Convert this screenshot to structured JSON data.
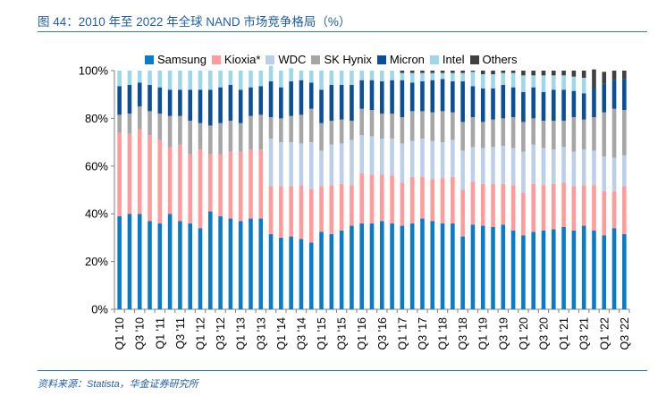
{
  "title": "图 44：2010 年至 2022 年全球 NAND 市场竞争格局（%）",
  "source": "资料来源：Statista，华金证券研究所",
  "chart_data": {
    "type": "bar",
    "stacked": true,
    "title": "图 44：2010 年至 2022 年全球 NAND 市场竞争格局（%）",
    "xlabel": "",
    "ylabel": "",
    "ylim": [
      0,
      100
    ],
    "yticks": [
      "0%",
      "20%",
      "40%",
      "60%",
      "80%",
      "100%"
    ],
    "legend_position": "top",
    "categories": [
      "Q1 '10",
      "Q2 '10",
      "Q3 '10",
      "Q4 '10",
      "Q1 '11",
      "Q2 '11",
      "Q3 '11",
      "Q4 '11",
      "Q1 '12",
      "Q2 '12",
      "Q3 '12",
      "Q4 '12",
      "Q1 '13",
      "Q2 '13",
      "Q3 '13",
      "Q4 '13",
      "Q1 '14",
      "Q2 '14",
      "Q3 '14",
      "Q4 '14",
      "Q1 '15",
      "Q2 '15",
      "Q3 '15",
      "Q4 '15",
      "Q1 '16",
      "Q2 '16",
      "Q3 '16",
      "Q4 '16",
      "Q1 '17",
      "Q2 '17",
      "Q3 '17",
      "Q4 '17",
      "Q1 '18",
      "Q2 '18",
      "Q3 '18",
      "Q4 '18",
      "Q1 '19",
      "Q2 '19",
      "Q3 '19",
      "Q4 '19",
      "Q1 '20",
      "Q2 '20",
      "Q3 '20",
      "Q4 '20",
      "Q1 '21",
      "Q2 '21",
      "Q3 '21",
      "Q4 '21",
      "Q1 '22",
      "Q2 '22",
      "Q3 '22"
    ],
    "tick_labels": [
      "Q1 '10",
      "Q3 '10",
      "Q1 '11",
      "Q3 '11",
      "Q1 '12",
      "Q3 '12",
      "Q1 '13",
      "Q3 '13",
      "Q1 '14",
      "Q3 '14",
      "Q2 '15",
      "Q4 '15",
      "Q2 '16",
      "Q4 '16",
      "Q2 '17",
      "Q4 '17",
      "Q2 '18",
      "Q4 '18",
      "Q2 '19",
      "Q4 '19",
      "Q2 '20",
      "Q4 '20",
      "Q2 '21",
      "Q4 '21",
      "Q2 '22"
    ],
    "series": [
      {
        "name": "Samsung",
        "color": "#0a7bc8",
        "values": [
          39,
          40,
          40,
          37,
          36,
          40,
          37,
          36,
          34,
          41,
          39,
          38,
          37,
          38,
          38,
          31.5,
          30,
          30.5,
          29.5,
          28,
          32.5,
          31.5,
          33,
          35,
          36,
          36,
          37,
          36,
          35,
          36,
          38,
          37,
          36,
          36,
          30.5,
          35.5,
          35,
          34.5,
          35.5,
          33,
          31,
          32.5,
          33,
          33.5,
          34.5,
          33,
          35,
          33,
          31,
          34,
          31.5
        ]
      },
      {
        "name": "Kioxia*",
        "color": "#ff9b9b",
        "values": [
          35,
          33.5,
          35.5,
          36,
          35,
          28,
          32,
          29,
          33,
          24,
          26,
          28,
          29,
          29,
          29,
          20,
          21.5,
          21,
          22.5,
          22.5,
          19,
          20.5,
          19.5,
          17,
          21,
          20.5,
          19.5,
          20,
          18,
          19.5,
          17.5,
          17.5,
          19,
          19.5,
          19.5,
          18,
          17.5,
          18,
          17,
          19,
          18,
          20,
          19,
          19,
          18.5,
          18.5,
          17,
          19,
          18.5,
          15.5,
          20
        ]
      },
      {
        "name": "WDC",
        "color": "#bccfea",
        "values": [
          0,
          0,
          0,
          0,
          0,
          0,
          0,
          0,
          0,
          0,
          0,
          0,
          0,
          0,
          0,
          20,
          18.5,
          18.5,
          17.5,
          19.5,
          15,
          17,
          17,
          19,
          16,
          16,
          15,
          15.5,
          16.5,
          15,
          16,
          16,
          15,
          15.5,
          16.5,
          14.5,
          15,
          15.5,
          16,
          15.5,
          17,
          16.5,
          15.5,
          14.5,
          15,
          14.5,
          15,
          14.5,
          14.5,
          14,
          13
        ]
      },
      {
        "name": "SK Hynix",
        "color": "#a6a6a6",
        "values": [
          7.5,
          8.5,
          9.5,
          10,
          11,
          13,
          12,
          14,
          11,
          12,
          13,
          13,
          12,
          14,
          14.5,
          9,
          10,
          11,
          12,
          14,
          11.5,
          10,
          10,
          8,
          11,
          11,
          10.5,
          10.5,
          11,
          12.5,
          11.5,
          12,
          13,
          11.5,
          12,
          12.5,
          11,
          11.5,
          11.5,
          13,
          12.5,
          11,
          11.5,
          12,
          11,
          14.5,
          12.5,
          14,
          18.5,
          20.5,
          19
        ]
      },
      {
        "name": "Micron",
        "color": "#0a4f98",
        "values": [
          12,
          12,
          10,
          11,
          11,
          11,
          11,
          13,
          14,
          15,
          15,
          15,
          14,
          12,
          12,
          15,
          13,
          14.5,
          14.5,
          11,
          14,
          15,
          14.5,
          15,
          12,
          12.5,
          13.5,
          14,
          15.5,
          12,
          12.5,
          13.5,
          13.5,
          13,
          17,
          13,
          14,
          13,
          14,
          12.5,
          12.5,
          13,
          12,
          13,
          13,
          11,
          11,
          12,
          12,
          12,
          13
        ]
      },
      {
        "name": "Intel",
        "color": "#9ed6ea",
        "values": [
          6.5,
          6,
          5,
          6,
          7,
          8,
          8,
          8,
          8,
          8,
          7,
          6,
          8,
          7,
          6.5,
          6.5,
          7,
          5.5,
          4,
          5,
          8,
          6,
          6,
          6,
          4,
          4,
          4.5,
          4,
          3,
          4,
          3.5,
          3,
          2.5,
          3.5,
          3.5,
          6,
          6,
          6,
          5,
          6,
          7,
          5,
          7,
          6,
          6,
          6,
          6.5,
          0,
          0,
          0,
          0
        ]
      },
      {
        "name": "Others",
        "color": "#404040",
        "values": [
          0,
          0,
          0,
          0,
          0,
          0,
          0,
          0,
          0,
          0,
          0,
          0,
          0,
          0,
          0,
          0,
          0,
          0,
          0,
          0,
          0,
          0,
          0,
          0,
          0,
          0,
          0,
          0,
          1,
          1,
          1,
          1,
          1,
          1,
          1,
          0.5,
          1.5,
          1.5,
          1,
          1,
          2,
          2,
          2,
          2,
          2,
          2.5,
          3,
          8,
          5,
          4,
          3.5
        ]
      }
    ]
  }
}
